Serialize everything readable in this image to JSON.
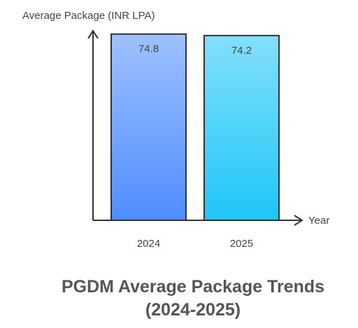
{
  "chart_data": {
    "type": "bar",
    "title": "PGDM Average Package Trends (2024-2025)",
    "y_label": "Average Package (INR LPA)",
    "x_label": "Year",
    "categories": [
      "2024",
      "2025"
    ],
    "values": [
      74.8,
      74.2
    ],
    "value_labels": [
      "74.8",
      "74.2"
    ],
    "colors": [
      "#4f8dff",
      "#1ec6f7"
    ],
    "ylim": [
      0,
      75
    ]
  }
}
